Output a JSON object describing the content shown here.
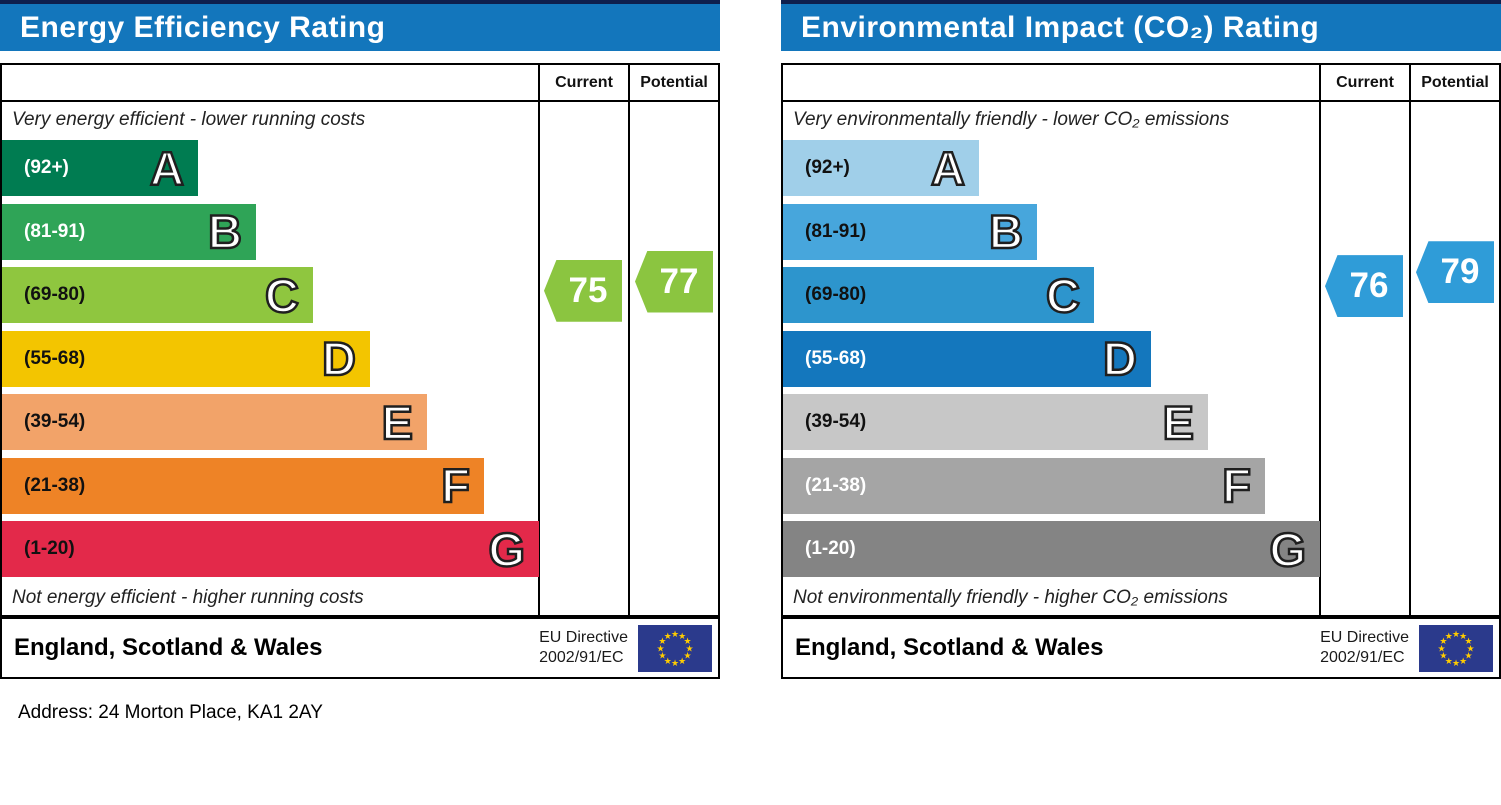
{
  "address": "Address: 24 Morton Place, KA1 2AY",
  "chart_data": [
    {
      "type": "bar",
      "title": "Energy Efficiency Rating",
      "categories": [
        "A (92+)",
        "B (81-91)",
        "C (69-80)",
        "D (55-68)",
        "E (39-54)",
        "F (21-38)",
        "G (1-20)"
      ],
      "scale_range": [
        1,
        100
      ],
      "current": 75,
      "potential": 77,
      "current_band": "C",
      "potential_band": "C",
      "annotation_top": "Very energy efficient - lower running costs",
      "annotation_bottom": "Not energy efficient - higher running costs",
      "region": "England, Scotland & Wales",
      "directive": "EU Directive 2002/91/EC"
    },
    {
      "type": "bar",
      "title": "Environmental Impact (CO₂) Rating",
      "categories": [
        "A (92+)",
        "B (81-91)",
        "C (69-80)",
        "D (55-68)",
        "E (39-54)",
        "F (21-38)",
        "G (1-20)"
      ],
      "scale_range": [
        1,
        100
      ],
      "current": 76,
      "potential": 79,
      "current_band": "C",
      "potential_band": "C",
      "annotation_top": "Very environmentally friendly - lower CO₂ emissions",
      "annotation_bottom": "Not environmentally friendly - higher CO₂ emissions",
      "region": "England, Scotland & Wales",
      "directive": "EU Directive 2002/91/EC"
    }
  ],
  "shared": {
    "header_color": "#1376bc",
    "columns": {
      "current": "Current",
      "potential": "Potential"
    },
    "band_ranges": [
      {
        "letter": "A",
        "label": "(92+)",
        "min": 92,
        "max": 100
      },
      {
        "letter": "B",
        "label": "(81-91)",
        "min": 81,
        "max": 91
      },
      {
        "letter": "C",
        "label": "(69-80)",
        "min": 69,
        "max": 80
      },
      {
        "letter": "D",
        "label": "(55-68)",
        "min": 55,
        "max": 68
      },
      {
        "letter": "E",
        "label": "(39-54)",
        "min": 39,
        "max": 54
      },
      {
        "letter": "F",
        "label": "(21-38)",
        "min": 21,
        "max": 38
      },
      {
        "letter": "G",
        "label": "(1-20)",
        "min": 1,
        "max": 20
      }
    ],
    "footer": {
      "region": "England, Scotland & Wales",
      "directive_line1": "EU Directive",
      "directive_line2": "2002/91/EC",
      "eu_flag": {
        "background": "#2b3a8c",
        "star_color": "#ffcc00"
      }
    }
  },
  "panels": [
    {
      "title": "Energy Efficiency Rating",
      "top_caption": "Very energy efficient - lower running costs",
      "bottom_caption": "Not energy efficient - higher running costs",
      "current": {
        "value": 75,
        "band": "C"
      },
      "potential": {
        "value": 77,
        "band": "C"
      },
      "arrow_color": "#8bc540",
      "band_colors": [
        "#007c51",
        "#2fa457",
        "#8fc63f",
        "#f3c500",
        "#f2a369",
        "#ee8326",
        "#e3294a"
      ],
      "band_label_colors": [
        "#ffffff",
        "#ffffff",
        "#111111",
        "#111111",
        "#111111",
        "#111111",
        "#111111"
      ]
    },
    {
      "title": "Environmental Impact (CO₂) Rating",
      "top_caption": "Very environmentally friendly - lower CO₂ emissions",
      "bottom_caption": "Not environmentally friendly - higher CO₂ emissions",
      "current": {
        "value": 76,
        "band": "C"
      },
      "potential": {
        "value": 79,
        "band": "C"
      },
      "arrow_color": "#2f9cd8",
      "band_colors": [
        "#a0cfe9",
        "#47a6dc",
        "#2d95cd",
        "#1477bd",
        "#c7c7c7",
        "#a5a5a5",
        "#848484"
      ],
      "band_label_colors": [
        "#111111",
        "#111111",
        "#111111",
        "#ffffff",
        "#111111",
        "#ffffff",
        "#ffffff"
      ]
    }
  ]
}
